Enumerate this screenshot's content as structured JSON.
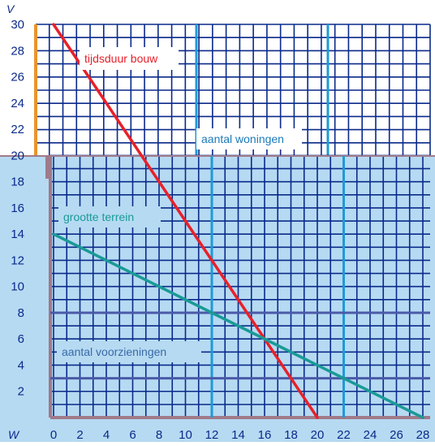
{
  "chart_data": {
    "type": "line",
    "axis_labels": {
      "y": "V",
      "x": "W"
    },
    "x_ticks": [
      "0",
      "2",
      "4",
      "6",
      "8",
      "10",
      "12",
      "14",
      "16",
      "18",
      "20",
      "22",
      "24",
      "26",
      "28"
    ],
    "y_ticks": [
      "2",
      "4",
      "6",
      "8",
      "10",
      "12",
      "14",
      "16",
      "18",
      "20",
      "22",
      "24",
      "26",
      "28",
      "30"
    ],
    "xlim": [
      0,
      28
    ],
    "ylim": [
      0,
      30
    ],
    "grid": "on",
    "series": [
      {
        "name": "tijdsduur bouw",
        "color": "#e8202a",
        "points": [
          [
            0,
            30
          ],
          [
            20,
            0
          ]
        ]
      },
      {
        "name": "grootte terrein",
        "color": "#1a9a96",
        "points": [
          [
            0,
            14
          ],
          [
            28,
            0
          ]
        ]
      }
    ],
    "reference_lines": {
      "vertical_x": [
        12,
        22
      ],
      "horizontal_y": [
        3,
        8
      ]
    },
    "annotations": [
      {
        "text": "tijdsduur bouw",
        "color": "#e8202a"
      },
      {
        "text": "aantal woningen",
        "color": "#1a7ab8"
      },
      {
        "text": "grootte terrein",
        "color": "#1a9a96"
      },
      {
        "text": "aantal voorzieningen",
        "color": "#3a6aa8"
      }
    ],
    "colors": {
      "grid_line": "#0a2a8a",
      "lower_panel": "#b6daf2",
      "upper_panel": "#ffffff",
      "orange_axis": "#e8952a",
      "brown_axis": "#a07a8a",
      "reference_line_v": "#1f9ad6",
      "reference_line_h": "#4a5aa8"
    }
  }
}
